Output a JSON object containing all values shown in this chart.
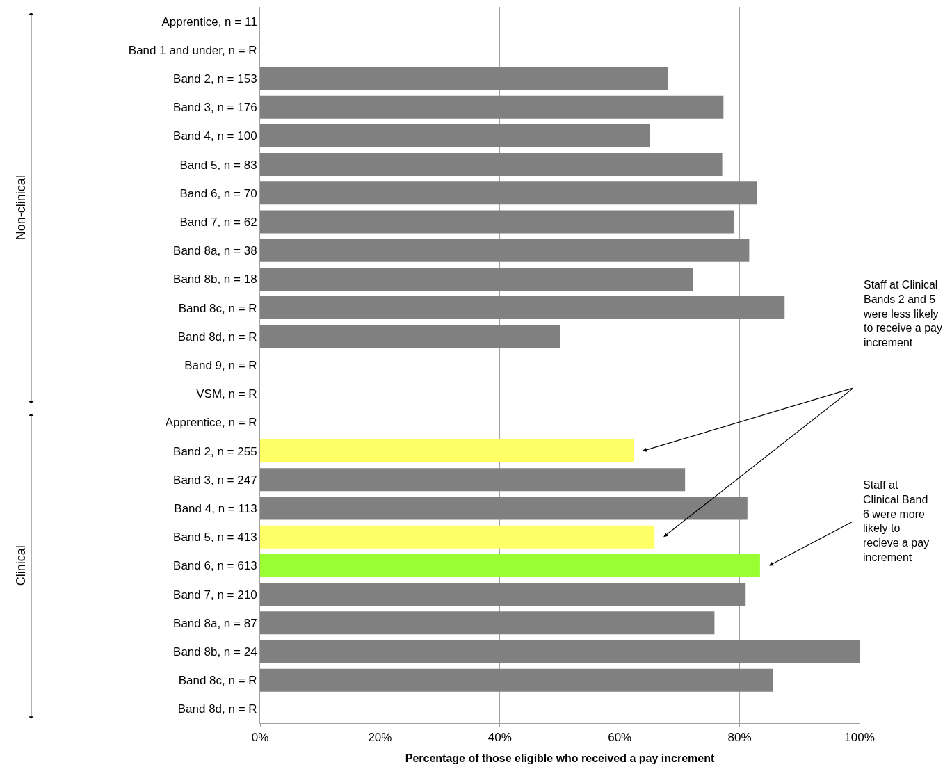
{
  "chart_data": {
    "type": "bar",
    "orientation": "horizontal",
    "xlabel": "Percentage of those eligible who received a pay increment",
    "categories": [
      "Apprentice, n = 11",
      "Band 1 and under, n = R",
      "Band 2, n = 153",
      "Band 3, n = 176",
      "Band 4, n = 100",
      "Band 5, n = 83",
      "Band 6, n = 70",
      "Band 7, n = 62",
      "Band 8a, n = 38",
      "Band 8b, n = 18",
      "Band 8c, n = R",
      "Band 8d, n = R",
      "Band 9, n = R",
      "VSM, n = R",
      "Apprentice, n = R",
      "Band 2, n = 255",
      "Band 3, n = 247",
      "Band 4, n = 113",
      "Band 5, n = 413",
      "Band 6, n = 613",
      "Band 7, n = 210",
      "Band 8a, n = 87",
      "Band 8b, n = 24",
      "Band 8c, n = R",
      "Band 8d, n = R"
    ],
    "values": [
      null,
      null,
      68.0,
      77.3,
      65.0,
      77.1,
      82.9,
      79.0,
      81.6,
      72.2,
      87.5,
      50.0,
      null,
      null,
      null,
      62.3,
      70.9,
      81.3,
      65.8,
      83.4,
      81.0,
      75.8,
      100,
      85.6,
      null
    ],
    "colors": [
      "#808080",
      "#808080",
      "#808080",
      "#808080",
      "#808080",
      "#808080",
      "#808080",
      "#808080",
      "#808080",
      "#808080",
      "#808080",
      "#808080",
      "#808080",
      "#808080",
      "#808080",
      "#ffff66",
      "#808080",
      "#808080",
      "#ffff66",
      "#99ff33",
      "#808080",
      "#808080",
      "#808080",
      "#808080",
      "#808080"
    ],
    "xlim": [
      0,
      100
    ],
    "xticks": [
      {
        "value": 0,
        "label": "0%"
      },
      {
        "value": 20,
        "label": "20%"
      },
      {
        "value": 40,
        "label": "40%"
      },
      {
        "value": 60,
        "label": "60%"
      },
      {
        "value": 80,
        "label": "80%"
      },
      {
        "value": 100,
        "label": "100%"
      }
    ],
    "grid": "x",
    "annotations": [
      "Non-clinical",
      "Clinical",
      "Staff at Clinical Bands 2 and 5 were less likely to receive a pay increment",
      "Staff at Clinical Band 6 were more likely to recieve a pay increment"
    ]
  }
}
